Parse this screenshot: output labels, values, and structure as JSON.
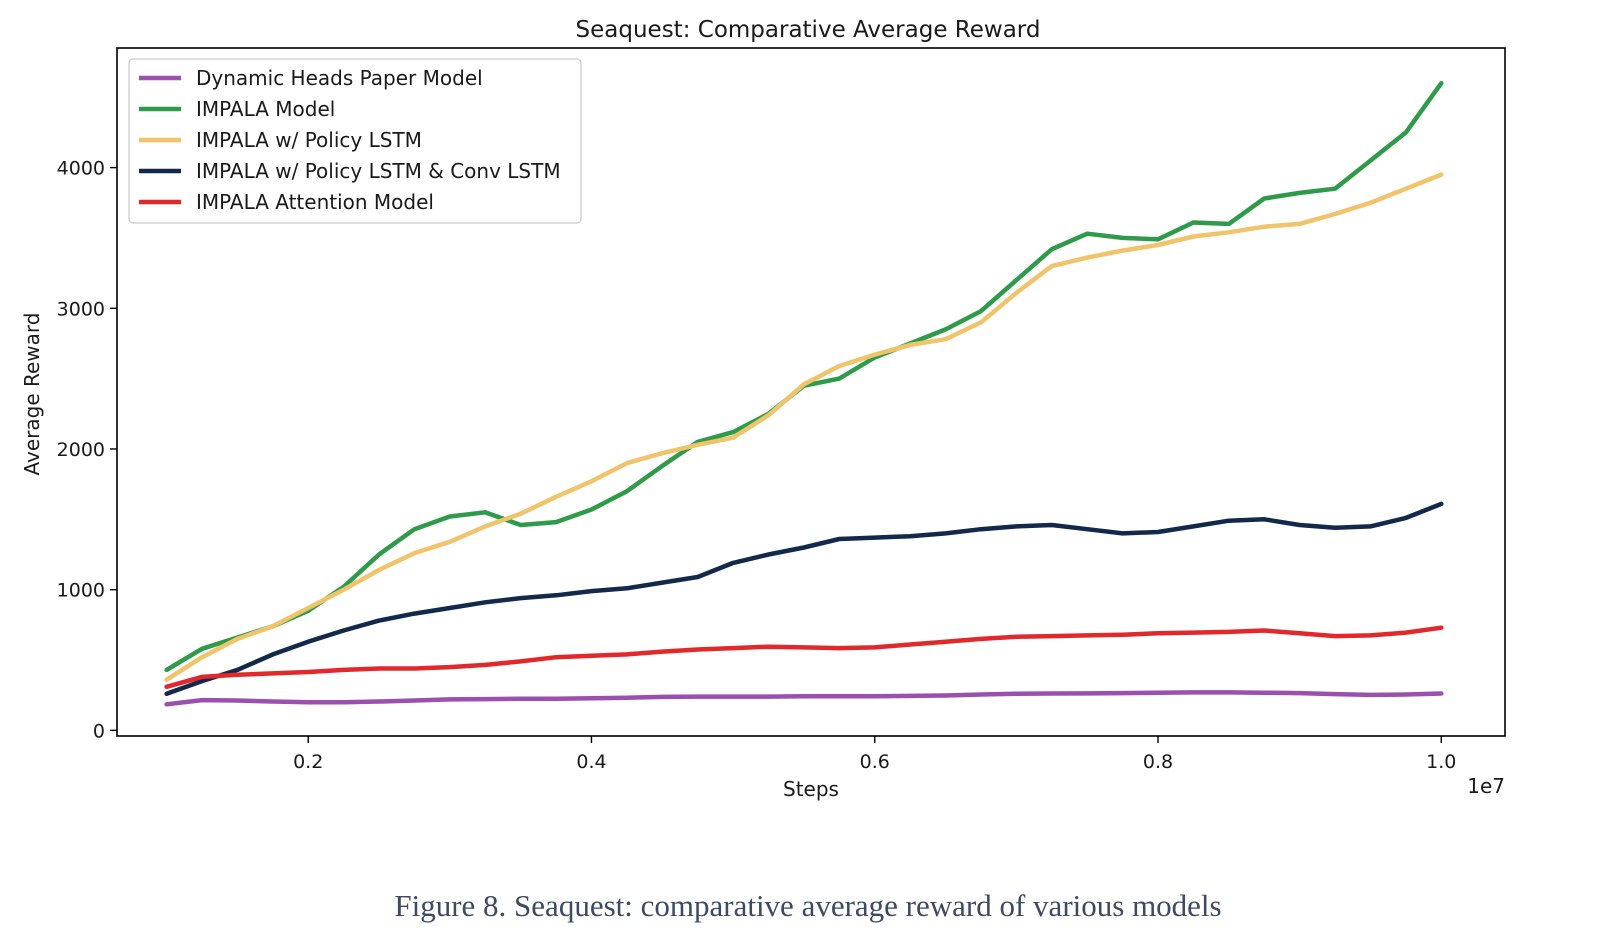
{
  "caption": "Figure 8. Seaquest: comparative average reward of various models",
  "chart_data": {
    "type": "line",
    "title": "Seaquest: Comparative Average Reward",
    "xlabel": "Steps",
    "ylabel": "Average Reward",
    "x_offset_text": "1e7",
    "xlim": [
      0.065,
      1.045
    ],
    "ylim": [
      -40,
      4850
    ],
    "xticks": [
      0.2,
      0.4,
      0.6,
      0.8,
      1.0
    ],
    "xtick_labels": [
      "0.2",
      "0.4",
      "0.6",
      "0.8",
      "1.0"
    ],
    "yticks": [
      0,
      1000,
      2000,
      3000,
      4000
    ],
    "ytick_labels": [
      "0",
      "1000",
      "2000",
      "3000",
      "4000"
    ],
    "grid": false,
    "legend_position": "top-left",
    "x": [
      0.1,
      0.125,
      0.15,
      0.175,
      0.2,
      0.225,
      0.25,
      0.275,
      0.3,
      0.325,
      0.35,
      0.375,
      0.4,
      0.425,
      0.45,
      0.475,
      0.5,
      0.525,
      0.55,
      0.575,
      0.6,
      0.625,
      0.65,
      0.675,
      0.7,
      0.725,
      0.75,
      0.775,
      0.8,
      0.825,
      0.85,
      0.875,
      0.9,
      0.925,
      0.95,
      0.975,
      1.0
    ],
    "series": [
      {
        "name": "Dynamic Heads Paper Model",
        "color": "#9b4fb0",
        "values": [
          185,
          215,
          212,
          205,
          200,
          200,
          205,
          212,
          220,
          222,
          225,
          225,
          228,
          232,
          238,
          240,
          240,
          240,
          242,
          242,
          243,
          245,
          248,
          255,
          260,
          262,
          263,
          265,
          268,
          270,
          270,
          268,
          265,
          258,
          252,
          255,
          262
        ]
      },
      {
        "name": "IMPALA Model",
        "color": "#2e9b4a",
        "values": [
          430,
          580,
          660,
          740,
          850,
          1020,
          1250,
          1430,
          1520,
          1550,
          1460,
          1480,
          1570,
          1700,
          1880,
          2050,
          2120,
          2250,
          2450,
          2500,
          2650,
          2750,
          2850,
          2980,
          3200,
          3420,
          3530,
          3500,
          3490,
          3610,
          3600,
          3780,
          3820,
          3850,
          4050,
          4250,
          4600
        ]
      },
      {
        "name": "IMPALA w/ Policy LSTM",
        "color": "#f0c46b",
        "values": [
          360,
          520,
          650,
          740,
          870,
          1000,
          1140,
          1260,
          1340,
          1450,
          1540,
          1660,
          1770,
          1900,
          1970,
          2030,
          2080,
          2240,
          2460,
          2590,
          2670,
          2740,
          2780,
          2900,
          3110,
          3300,
          3360,
          3410,
          3450,
          3510,
          3540,
          3580,
          3600,
          3670,
          3750,
          3850,
          3950
        ]
      },
      {
        "name": "IMPALA w/ Policy LSTM & Conv LSTM",
        "color": "#13294b",
        "values": [
          260,
          350,
          430,
          540,
          630,
          710,
          780,
          830,
          870,
          910,
          940,
          960,
          990,
          1010,
          1050,
          1090,
          1190,
          1250,
          1300,
          1360,
          1370,
          1380,
          1400,
          1430,
          1450,
          1460,
          1430,
          1400,
          1410,
          1450,
          1490,
          1500,
          1460,
          1440,
          1450,
          1510,
          1610
        ]
      },
      {
        "name": "IMPALA Attention Model",
        "color": "#e3282c",
        "values": [
          310,
          380,
          395,
          405,
          415,
          430,
          440,
          440,
          450,
          465,
          490,
          520,
          530,
          540,
          560,
          575,
          585,
          595,
          590,
          585,
          590,
          610,
          630,
          650,
          665,
          670,
          675,
          680,
          690,
          695,
          700,
          710,
          690,
          670,
          675,
          695,
          730
        ]
      }
    ]
  }
}
